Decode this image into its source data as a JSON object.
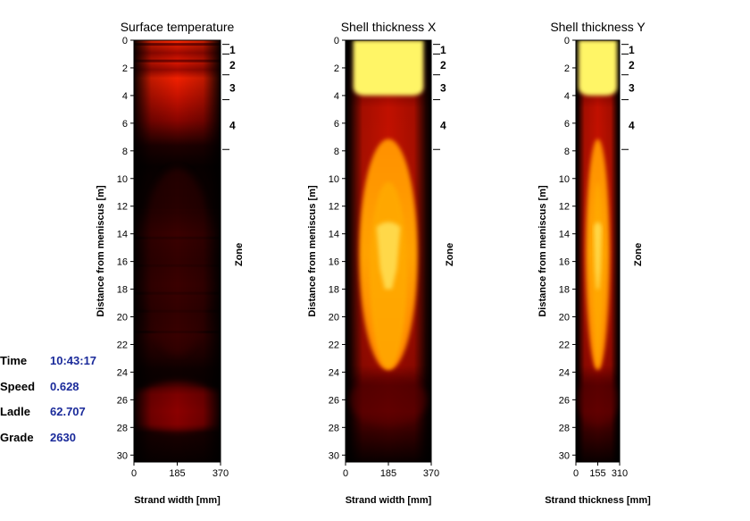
{
  "status": {
    "time_label": "Time",
    "time_value": "10:43:17",
    "speed_label": "Speed",
    "speed_value": "0.628",
    "ladle_label": "Ladle",
    "ladle_value": "62.707",
    "grade_label": "Grade",
    "grade_value": "2630"
  },
  "colors": {
    "black": "#000000",
    "dark_red": "#3a0000",
    "red": "#d01000",
    "orange": "#ff8800",
    "amber": "#ffaa00",
    "yellow": "#ffff66"
  },
  "chart_data": [
    {
      "type": "heatmap",
      "title": "Surface temperature",
      "xlabel": "Strand width [mm]",
      "ylabel": "Distance from meniscus [m]",
      "zone_label": "Zone",
      "xticks": [
        0,
        185,
        370
      ],
      "xlim": [
        0,
        370
      ],
      "yticks": [
        0,
        2,
        4,
        6,
        8,
        10,
        12,
        14,
        16,
        18,
        20,
        22,
        24,
        26,
        28,
        30
      ],
      "ylim": [
        30.5,
        0
      ],
      "zones": [
        {
          "name": "1",
          "start": 0.3,
          "end": 1.0
        },
        {
          "name": "2",
          "start": 1.0,
          "end": 2.5
        },
        {
          "name": "3",
          "start": 2.5,
          "end": 4.3
        },
        {
          "name": "4",
          "start": 4.3,
          "end": 7.9
        }
      ]
    },
    {
      "type": "heatmap",
      "title": "Shell thickness X",
      "xlabel": "Strand width [mm]",
      "ylabel": "Distance from meniscus [m]",
      "zone_label": "Zone",
      "xticks": [
        0,
        185,
        370
      ],
      "xlim": [
        0,
        370
      ],
      "yticks": [
        0,
        2,
        4,
        6,
        8,
        10,
        12,
        14,
        16,
        18,
        20,
        22,
        24,
        26,
        28,
        30
      ],
      "ylim": [
        30.5,
        0
      ],
      "zones": [
        {
          "name": "1",
          "start": 0.3,
          "end": 1.0
        },
        {
          "name": "2",
          "start": 1.0,
          "end": 2.5
        },
        {
          "name": "3",
          "start": 2.5,
          "end": 4.3
        },
        {
          "name": "4",
          "start": 4.3,
          "end": 7.9
        }
      ]
    },
    {
      "type": "heatmap",
      "title": "Shell thickness Y",
      "xlabel": "Strand thickness [mm]",
      "ylabel": "Distance from meniscus [m]",
      "zone_label": "Zone",
      "xticks": [
        0,
        155,
        310
      ],
      "xlim": [
        0,
        310
      ],
      "yticks": [
        0,
        2,
        4,
        6,
        8,
        10,
        12,
        14,
        16,
        18,
        20,
        22,
        24,
        26,
        28,
        30
      ],
      "ylim": [
        30.5,
        0
      ],
      "zones": [
        {
          "name": "1",
          "start": 0.3,
          "end": 1.0
        },
        {
          "name": "2",
          "start": 1.0,
          "end": 2.5
        },
        {
          "name": "3",
          "start": 2.5,
          "end": 4.3
        },
        {
          "name": "4",
          "start": 4.3,
          "end": 7.9
        }
      ]
    }
  ]
}
